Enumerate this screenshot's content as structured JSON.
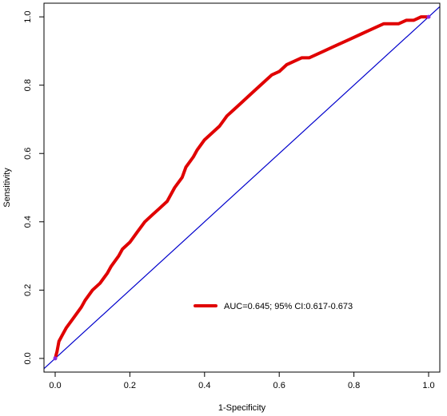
{
  "chart_data": {
    "type": "line",
    "title": "",
    "xlabel": "1-Specificity",
    "ylabel": "Sensitivity",
    "xlim": [
      -0.03,
      1.03
    ],
    "ylim": [
      -0.04,
      1.04
    ],
    "x_ticks": [
      0.0,
      0.2,
      0.4,
      0.6,
      0.8,
      1.0
    ],
    "y_ticks": [
      0.0,
      0.2,
      0.4,
      0.6,
      0.8,
      1.0
    ],
    "x_tick_labels": [
      "0.0",
      "0.2",
      "0.4",
      "0.6",
      "0.8",
      "1.0"
    ],
    "y_tick_labels": [
      "0.0",
      "0.2",
      "0.4",
      "0.6",
      "0.8",
      "1.0"
    ],
    "grid": false,
    "legend_position": "lower-right",
    "series": [
      {
        "name": "AUC=0.645; 95% CI:0.617-0.673",
        "color": "#e00000",
        "style": "thick-line",
        "x": [
          0.0,
          0.005,
          0.01,
          0.02,
          0.03,
          0.05,
          0.07,
          0.08,
          0.1,
          0.12,
          0.14,
          0.15,
          0.17,
          0.18,
          0.2,
          0.22,
          0.24,
          0.26,
          0.28,
          0.3,
          0.32,
          0.34,
          0.35,
          0.37,
          0.38,
          0.4,
          0.42,
          0.44,
          0.46,
          0.48,
          0.5,
          0.52,
          0.54,
          0.56,
          0.58,
          0.6,
          0.62,
          0.64,
          0.66,
          0.68,
          0.7,
          0.72,
          0.74,
          0.76,
          0.78,
          0.8,
          0.82,
          0.84,
          0.86,
          0.88,
          0.9,
          0.92,
          0.94,
          0.96,
          0.98,
          1.0
        ],
        "y": [
          0.0,
          0.02,
          0.05,
          0.07,
          0.09,
          0.12,
          0.15,
          0.17,
          0.2,
          0.22,
          0.25,
          0.27,
          0.3,
          0.32,
          0.34,
          0.37,
          0.4,
          0.42,
          0.44,
          0.46,
          0.5,
          0.53,
          0.56,
          0.59,
          0.61,
          0.64,
          0.66,
          0.68,
          0.71,
          0.73,
          0.75,
          0.77,
          0.79,
          0.81,
          0.83,
          0.84,
          0.86,
          0.87,
          0.88,
          0.88,
          0.89,
          0.9,
          0.91,
          0.92,
          0.93,
          0.94,
          0.95,
          0.96,
          0.97,
          0.98,
          0.98,
          0.98,
          0.99,
          0.99,
          1.0,
          1.0
        ]
      },
      {
        "name": "",
        "color": "#0000cc",
        "style": "thin-line",
        "x": [
          0.0,
          1.0
        ],
        "y": [
          0.0,
          1.0
        ]
      }
    ],
    "legend": {
      "label": "AUC=0.645; 95% CI:0.617-0.673",
      "color": "#e00000"
    }
  }
}
